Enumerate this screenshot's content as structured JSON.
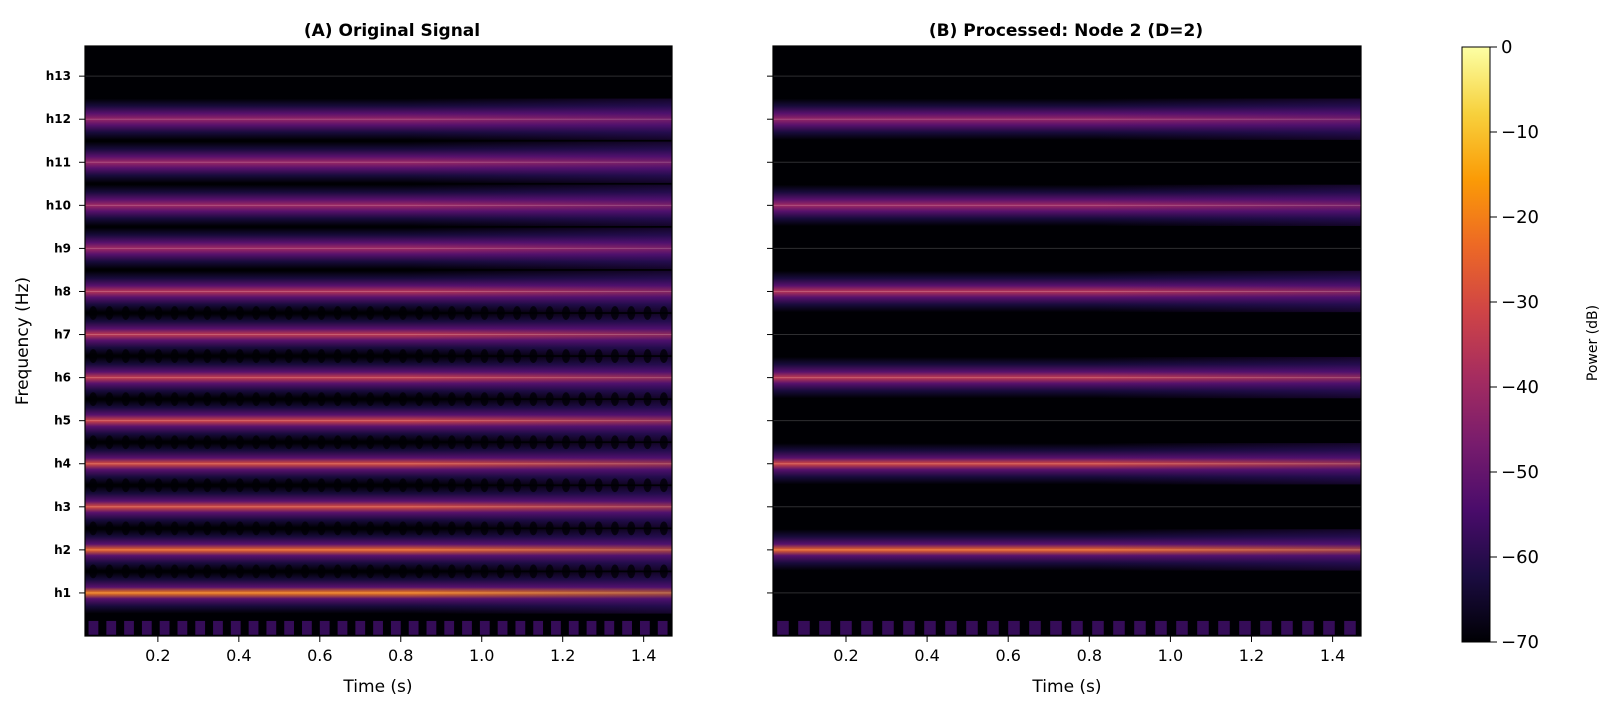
{
  "chart_data": [
    {
      "type": "heatmap",
      "title": "(A) Original Signal",
      "xlabel": "Time (s)",
      "ylabel": "Frequency (Hz)",
      "xlim": [
        0.02,
        1.47
      ],
      "xticks": [
        0.2,
        0.4,
        0.6,
        0.8,
        1.0,
        1.2,
        1.4
      ],
      "xtick_labels": [
        "0.2",
        "0.4",
        "0.6",
        "0.8",
        "1.0",
        "1.2",
        "1.4"
      ],
      "ytick_labels": [
        "h1",
        "h2",
        "h3",
        "h4",
        "h5",
        "h6",
        "h7",
        "h8",
        "h9",
        "h10",
        "h11",
        "h12",
        "h13"
      ],
      "grid": true,
      "bands": [
        {
          "harmonic": 1,
          "peak_db": -20
        },
        {
          "harmonic": 2,
          "peak_db": -24
        },
        {
          "harmonic": 3,
          "peak_db": -29
        },
        {
          "harmonic": 4,
          "peak_db": -29
        },
        {
          "harmonic": 5,
          "peak_db": -31
        },
        {
          "harmonic": 6,
          "peak_db": -33
        },
        {
          "harmonic": 7,
          "peak_db": -34
        },
        {
          "harmonic": 8,
          "peak_db": -36
        },
        {
          "harmonic": 9,
          "peak_db": -40
        },
        {
          "harmonic": 10,
          "peak_db": -40
        },
        {
          "harmonic": 11,
          "peak_db": -41
        },
        {
          "harmonic": 12,
          "peak_db": -42
        }
      ]
    },
    {
      "type": "heatmap",
      "title": "(B) Processed: Node 2 (D=2)",
      "xlabel": "Time (s)",
      "ylabel": "",
      "xlim": [
        0.02,
        1.47
      ],
      "xticks": [
        0.2,
        0.4,
        0.6,
        0.8,
        1.0,
        1.2,
        1.4
      ],
      "xtick_labels": [
        "0.2",
        "0.4",
        "0.6",
        "0.8",
        "1.0",
        "1.2",
        "1.4"
      ],
      "ytick_labels": [],
      "grid": true,
      "bands": [
        {
          "harmonic": 2,
          "peak_db": -24
        },
        {
          "harmonic": 4,
          "peak_db": -30
        },
        {
          "harmonic": 6,
          "peak_db": -34
        },
        {
          "harmonic": 8,
          "peak_db": -36
        },
        {
          "harmonic": 10,
          "peak_db": -40
        },
        {
          "harmonic": 12,
          "peak_db": -42
        }
      ]
    }
  ],
  "colorbar": {
    "label": "Power (dB)",
    "range": [
      -70,
      0
    ],
    "ticks": [
      0,
      -10,
      -20,
      -30,
      -40,
      -50,
      -60,
      -70
    ],
    "tick_labels": [
      "0",
      "−10",
      "−20",
      "−30",
      "−40",
      "−50",
      "−60",
      "−70"
    ],
    "colormap": "inferno",
    "stops": [
      "#000004",
      "#1b0c41",
      "#4a0c6b",
      "#781c6d",
      "#a52c60",
      "#cf4446",
      "#ed6925",
      "#fb9b06",
      "#f7d13d",
      "#fcffa4"
    ]
  }
}
